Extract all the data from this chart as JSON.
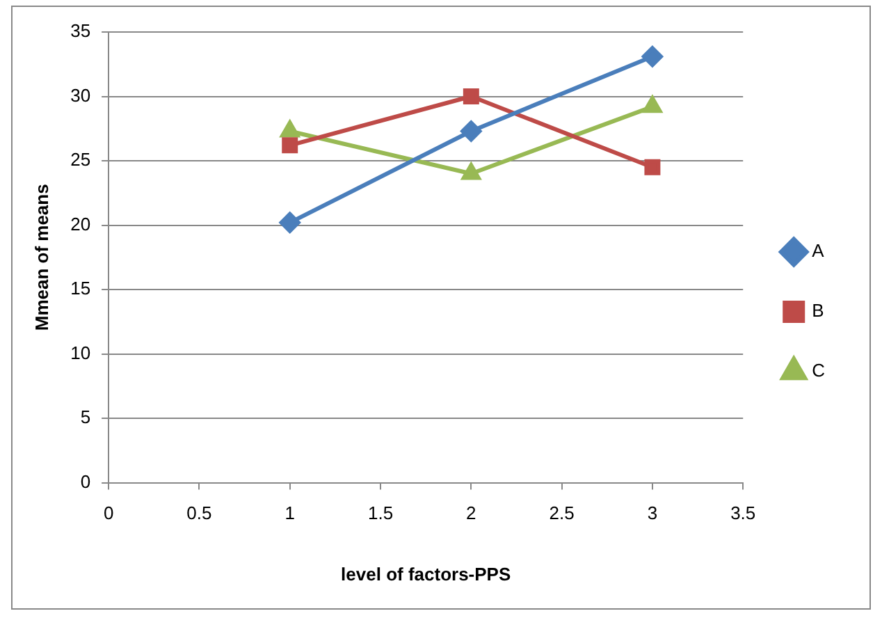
{
  "chart_data": {
    "type": "line",
    "xlabel": "level of factors-PPS",
    "ylabel": "Mmean of means",
    "x": [
      1,
      2,
      3
    ],
    "series": [
      {
        "name": "A",
        "color": "#4a7ebb",
        "values": [
          20.2,
          27.3,
          33.1
        ],
        "marker": "diamond"
      },
      {
        "name": "B",
        "color": "#be4b48",
        "values": [
          26.2,
          30,
          24.5
        ],
        "marker": "square"
      },
      {
        "name": "C",
        "color": "#98b954",
        "values": [
          27.3,
          24,
          29.2
        ],
        "marker": "triangle"
      }
    ],
    "xlim": [
      0,
      3.5
    ],
    "xticks": [
      0,
      0.5,
      1,
      1.5,
      2,
      2.5,
      3,
      3.5
    ],
    "ylim": [
      0,
      35
    ],
    "yticks": [
      0,
      5,
      10,
      15,
      20,
      25,
      30,
      35
    ],
    "grid": "y",
    "legend": "right",
    "line_style": "solid"
  }
}
